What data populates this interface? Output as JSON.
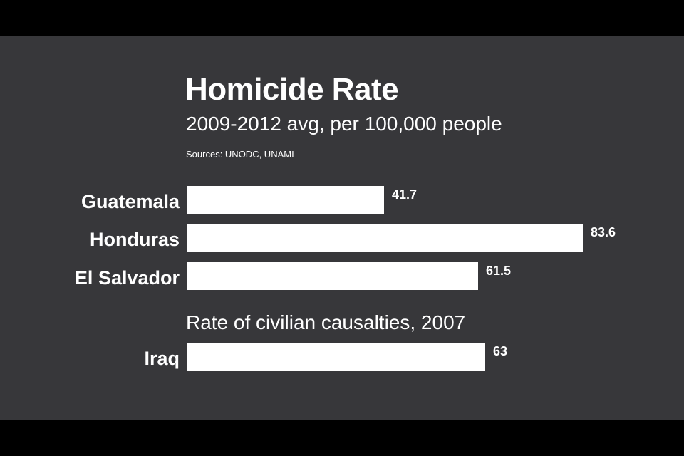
{
  "chart_data": {
    "type": "bar",
    "orientation": "horizontal",
    "title": "Homicide Rate",
    "subtitle": "2009-2012 avg, per 100,000 people",
    "source": "Sources: UNODC, UNAMI",
    "xlim": [
      0,
      83.6
    ],
    "grid": false,
    "legend": "none",
    "groups": [
      {
        "label": "",
        "categories": [
          "Guatemala",
          "Honduras",
          "El Salvador"
        ],
        "values": [
          41.7,
          83.6,
          61.5
        ],
        "value_labels": [
          "41.7",
          "83.6",
          "61.5"
        ]
      },
      {
        "label": "Rate of civilian causalties, 2007",
        "categories": [
          "Iraq"
        ],
        "values": [
          63
        ],
        "value_labels": [
          "63"
        ]
      }
    ],
    "colors": {
      "background": "#37373a",
      "bar": "#ffffff",
      "text": "#ffffff"
    }
  }
}
